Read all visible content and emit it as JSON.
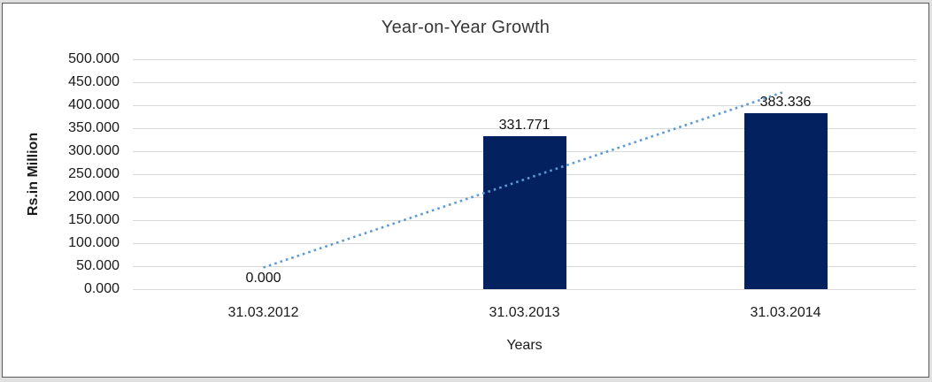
{
  "chart_data": {
    "type": "bar",
    "title": "Year-on-Year Growth",
    "xlabel": "Years",
    "ylabel": "Rs.in Million",
    "categories": [
      "31.03.2012",
      "31.03.2013",
      "31.03.2014"
    ],
    "values": [
      0,
      331.771,
      383.336
    ],
    "data_labels": [
      "0.000",
      "331.771",
      "383.336"
    ],
    "yticks": [
      "500.000",
      "450.000",
      "400.000",
      "350.000",
      "300.000",
      "250.000",
      "200.000",
      "150.000",
      "100.000",
      "50.000",
      "0.000"
    ],
    "ylim": [
      0,
      500
    ],
    "grid": "horizontal",
    "legend": "none",
    "bar_color": "#03215f",
    "gridline_color": "#d9d9d9",
    "text_color": "#1a1a1a",
    "trendline": {
      "type": "linear",
      "style": "dotted",
      "color": "#5b9bd5",
      "start_value": 47,
      "end_value": 430
    }
  },
  "frame": {
    "outer_background": "#e0e0e0",
    "border_color": "#595959",
    "background": "#ffffff"
  }
}
